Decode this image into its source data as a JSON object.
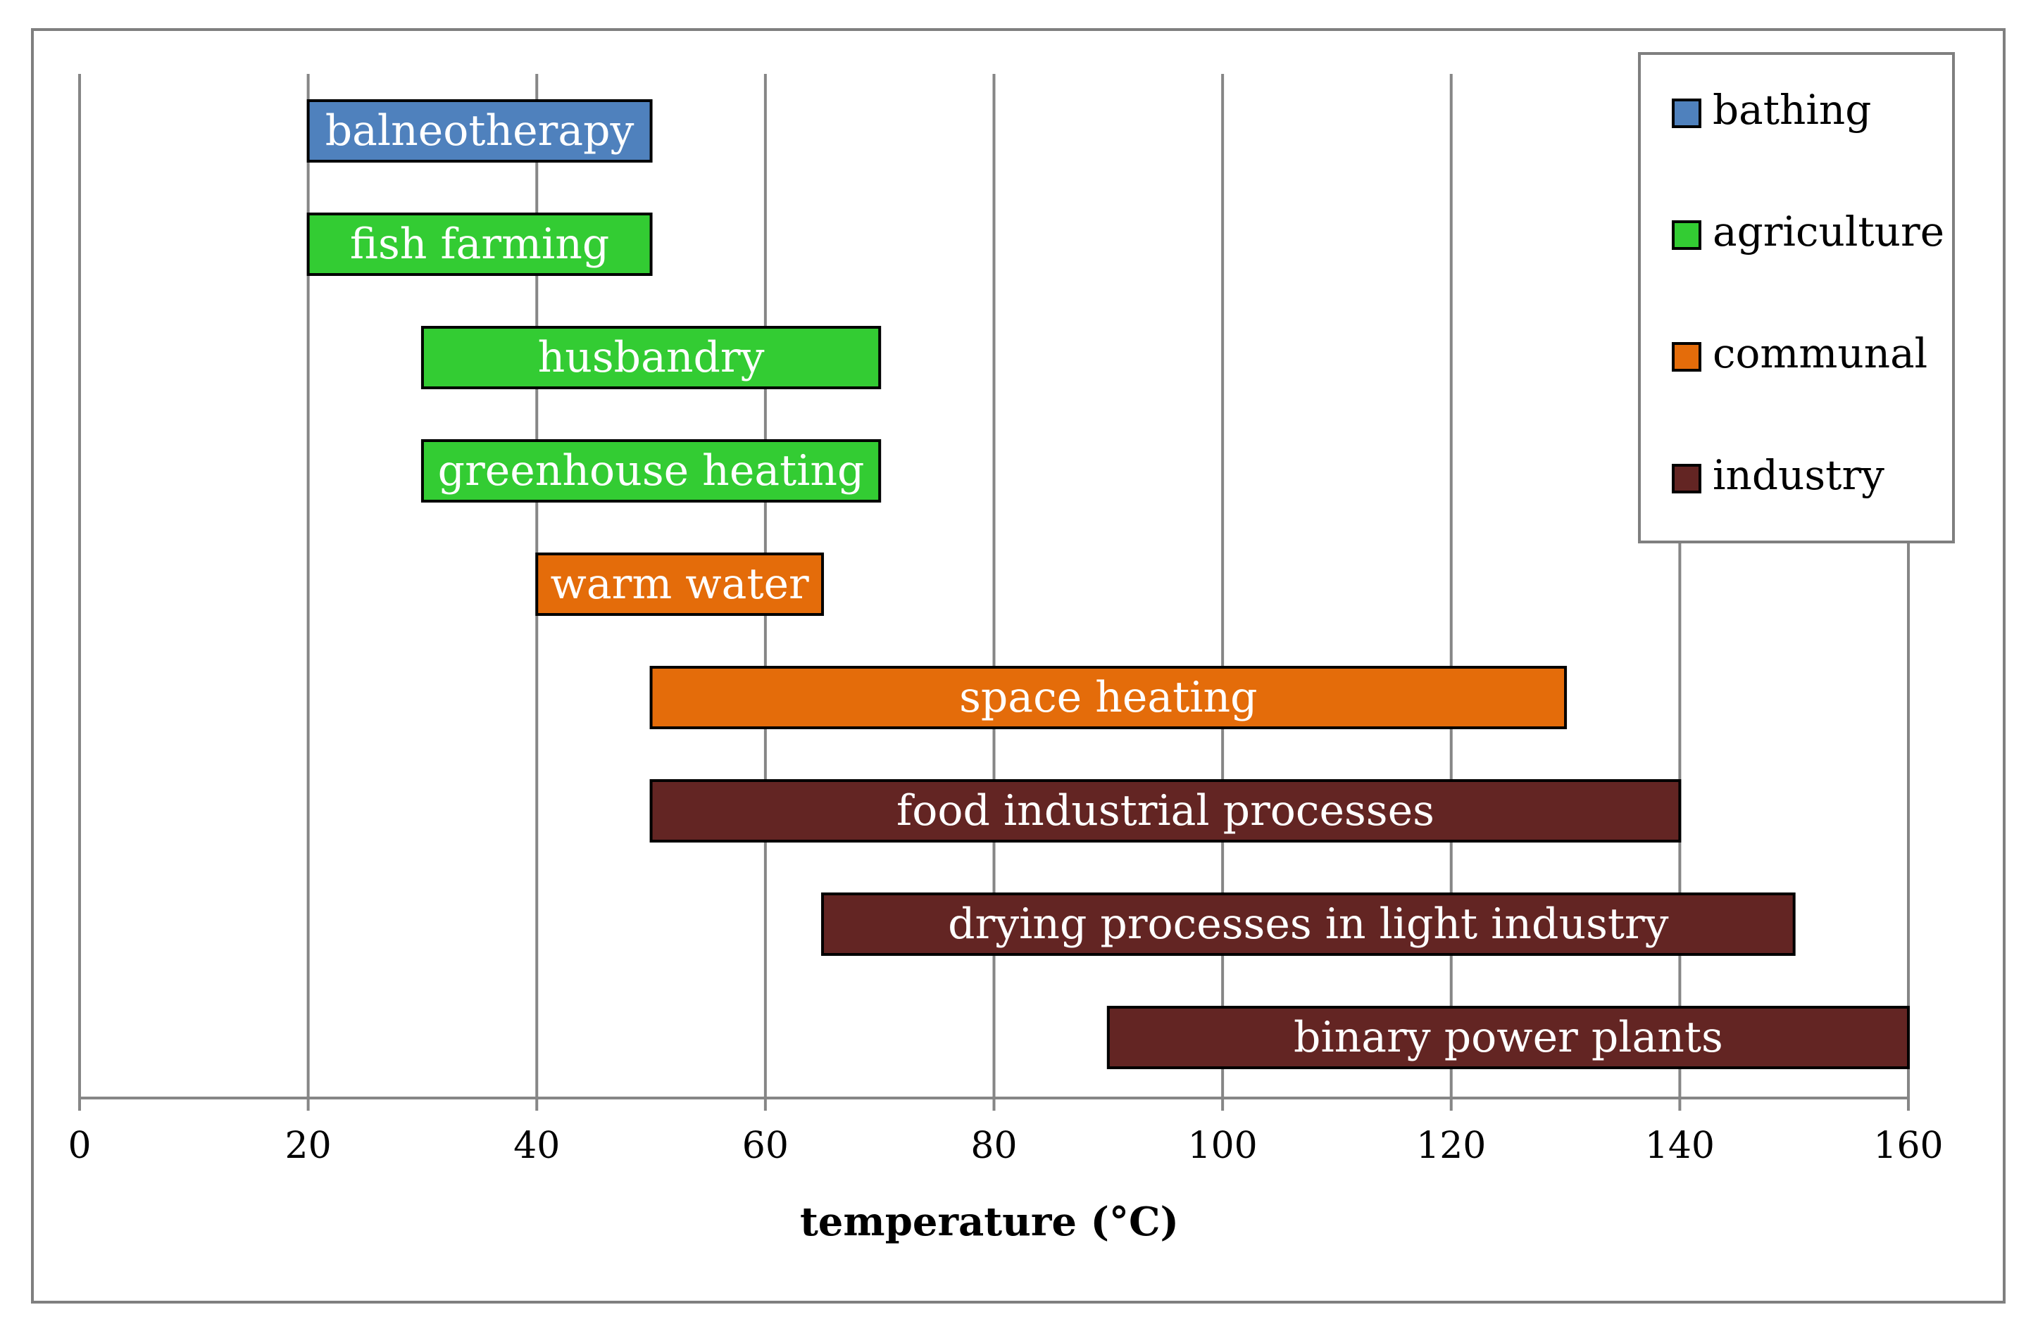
{
  "chart_data": {
    "type": "bar",
    "orientation": "horizontal-range",
    "title": "",
    "xlabel": "temperature (°C)",
    "ylabel": "",
    "xlim": [
      0,
      160
    ],
    "xticks": [
      0,
      20,
      40,
      60,
      80,
      100,
      120,
      140,
      160
    ],
    "grid": true,
    "legend_position": "top-right",
    "series": [
      {
        "name": "bathing",
        "color": "#4f81bd"
      },
      {
        "name": "agriculture",
        "color": "#33cc33"
      },
      {
        "name": "communal",
        "color": "#e46c0a"
      },
      {
        "name": "industry",
        "color": "#632523"
      }
    ],
    "bars": [
      {
        "label": "balneotherapy",
        "start": 20,
        "end": 50,
        "series": "bathing"
      },
      {
        "label": "fish farming",
        "start": 20,
        "end": 50,
        "series": "agriculture"
      },
      {
        "label": "husbandry",
        "start": 30,
        "end": 70,
        "series": "agriculture"
      },
      {
        "label": "greenhouse heating",
        "start": 30,
        "end": 70,
        "series": "agriculture"
      },
      {
        "label": "warm water",
        "start": 40,
        "end": 65,
        "series": "communal"
      },
      {
        "label": "space heating",
        "start": 50,
        "end": 130,
        "series": "communal"
      },
      {
        "label": "food industrial processes",
        "start": 50,
        "end": 140,
        "series": "industry"
      },
      {
        "label": "drying processes in light industry",
        "start": 65,
        "end": 150,
        "series": "industry"
      },
      {
        "label": "binary power plants",
        "start": 90,
        "end": 160,
        "series": "industry"
      }
    ]
  }
}
